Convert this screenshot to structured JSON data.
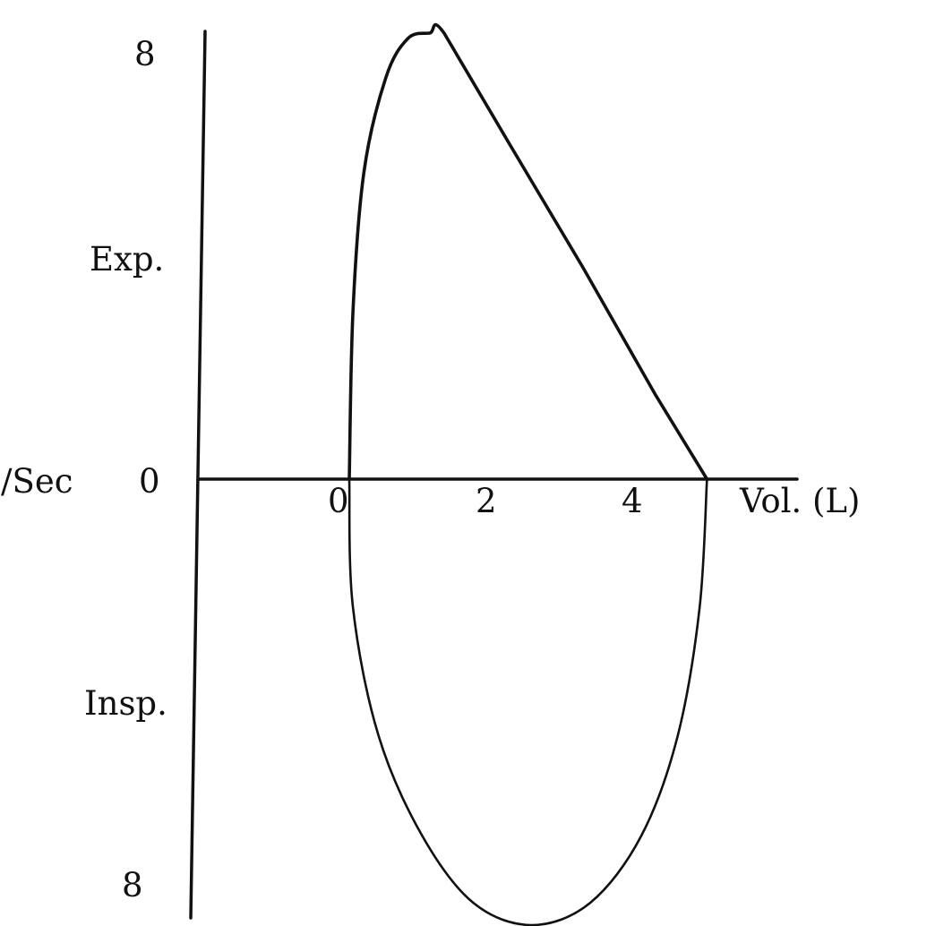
{
  "chart_data": {
    "type": "line",
    "title": "",
    "xlabel": "Vol. (L)",
    "ylabel": "/Sec",
    "x_ticks": [
      "0",
      "2",
      "4"
    ],
    "x_tick_values": [
      0,
      2,
      4
    ],
    "y_ticks": [
      {
        "label": "8",
        "value": 8
      },
      {
        "label": "0",
        "value": 0
      },
      {
        "label": "8",
        "value": -8
      }
    ],
    "y_region_labels": {
      "expiration": "Exp.",
      "inspiration": "Insp."
    },
    "xlim": [
      -2,
      6
    ],
    "ylim": [
      -8,
      8
    ],
    "grid": false,
    "legend": "none",
    "series": [
      {
        "segment": "expiratory",
        "x": [
          0.0,
          0.05,
          0.2,
          0.5,
          0.8,
          1.1,
          1.3,
          2.2,
          3.2,
          4.2,
          4.9
        ],
        "y": [
          0.0,
          3.0,
          5.5,
          7.2,
          7.9,
          8.0,
          8.0,
          6.0,
          3.8,
          1.5,
          0.0
        ]
      },
      {
        "segment": "inspiratory",
        "x": [
          4.9,
          4.8,
          4.5,
          4.0,
          3.3,
          2.5,
          1.7,
          1.0,
          0.4,
          0.05,
          0.0
        ],
        "y": [
          0.0,
          -2.3,
          -4.6,
          -6.4,
          -7.6,
          -8.0,
          -7.6,
          -6.4,
          -4.6,
          -2.3,
          0.0
        ]
      }
    ]
  }
}
